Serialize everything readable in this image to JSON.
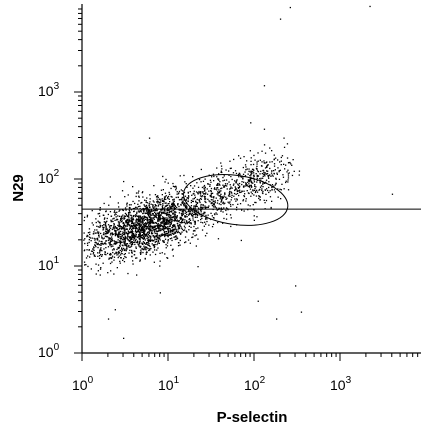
{
  "chart_data": {
    "type": "scatter",
    "title": "",
    "xlabel": "P-selectin",
    "ylabel": "N29",
    "x_scale": "log",
    "y_scale": "log",
    "xlim": [
      1,
      10000
    ],
    "ylim": [
      1,
      10000
    ],
    "x_ticks": [
      {
        "base": "10",
        "exp": "0"
      },
      {
        "base": "10",
        "exp": "1"
      },
      {
        "base": "10",
        "exp": "2"
      },
      {
        "base": "10",
        "exp": "3"
      }
    ],
    "y_ticks": [
      {
        "base": "10",
        "exp": "0"
      },
      {
        "base": "10",
        "exp": "1"
      },
      {
        "base": "10",
        "exp": "2"
      },
      {
        "base": "10",
        "exp": "3"
      }
    ],
    "threshold_line": {
      "orientation": "horizontal",
      "y": 45
    },
    "gate": {
      "shape": "ellipse",
      "center": [
        48,
        56
      ],
      "span_x": [
        15,
        250
      ],
      "span_y": [
        30,
        110
      ]
    },
    "series": [
      {
        "main_cluster": {
          "center": [
            5,
            28
          ],
          "spread_decades": [
            0.35,
            0.16
          ],
          "count": 1900
        },
        "tail": {
          "from": [
            5,
            30
          ],
          "to": [
            200,
            130
          ],
          "count": 900
        },
        "outliers": [
          [
            200,
            7000
          ],
          [
            260,
            9500
          ],
          [
            2200,
            9800
          ],
          [
            130,
            1200
          ],
          [
            220,
            300
          ],
          [
            130,
            380
          ],
          [
            90,
            450
          ],
          [
            6,
            300
          ],
          [
            280,
            170
          ],
          [
            4000,
            68
          ],
          [
            3,
            95
          ],
          [
            1.6,
            8
          ],
          [
            2,
            2.5
          ],
          [
            3,
            1.5
          ],
          [
            2.4,
            3.2
          ],
          [
            9,
            14
          ],
          [
            22,
            10
          ],
          [
            70,
            20
          ],
          [
            110,
            4
          ],
          [
            180,
            2.5
          ],
          [
            300,
            6
          ],
          [
            350,
            3
          ],
          [
            8,
            5
          ],
          [
            1.3,
            15
          ],
          [
            16,
            90
          ]
        ]
      }
    ]
  }
}
